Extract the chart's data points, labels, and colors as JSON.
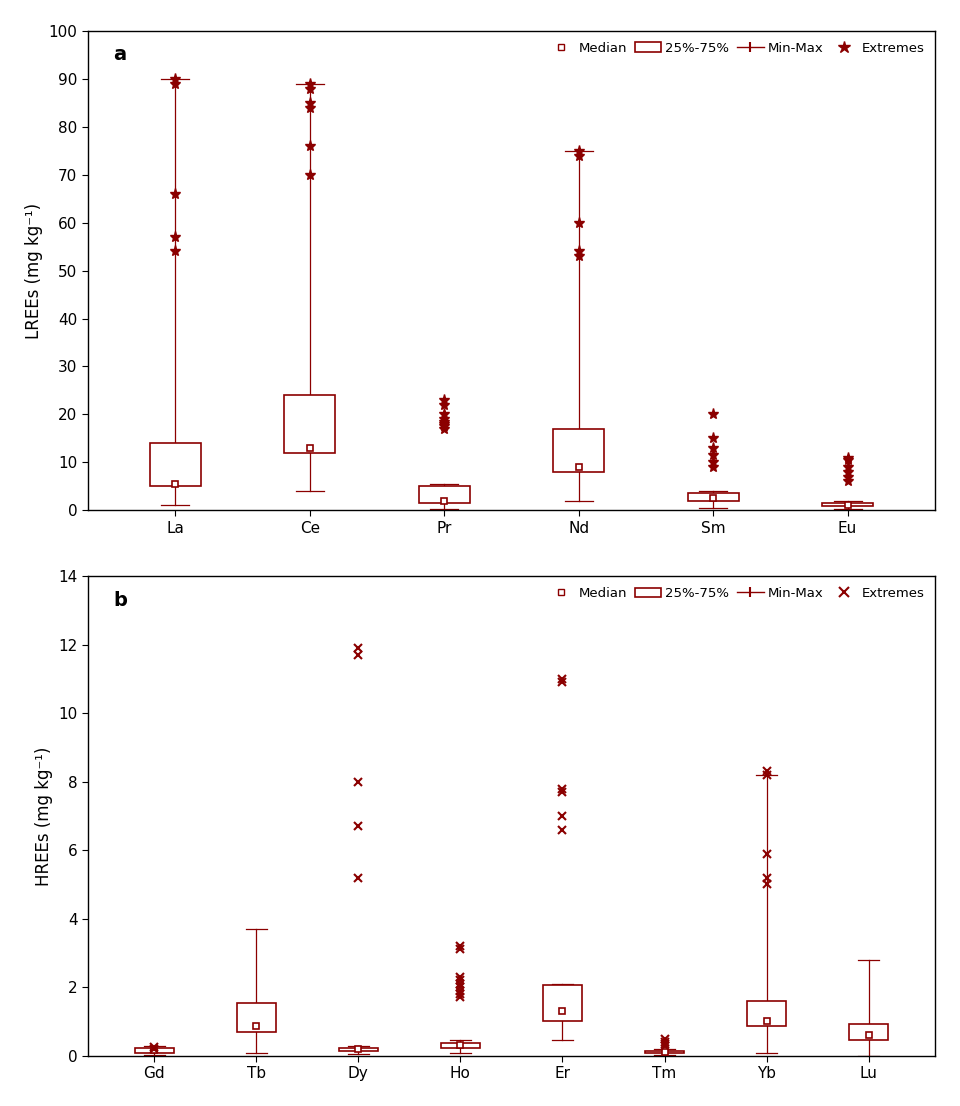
{
  "color": "#8B0000",
  "panel_a": {
    "label": "a",
    "ylabel": "LREEs (mg kg⁻¹)",
    "ylim": [
      0,
      100
    ],
    "yticks": [
      0,
      10,
      20,
      30,
      40,
      50,
      60,
      70,
      80,
      90,
      100
    ],
    "categories": [
      "La",
      "Ce",
      "Pr",
      "Nd",
      "Sm",
      "Eu"
    ],
    "median": [
      5.5,
      13.0,
      2.0,
      9.0,
      2.5,
      1.0
    ],
    "q1": [
      5.0,
      12.0,
      1.5,
      8.0,
      2.0,
      0.8
    ],
    "q3": [
      14.0,
      24.0,
      5.0,
      17.0,
      3.5,
      1.5
    ],
    "whisker_min": [
      1.0,
      4.0,
      0.3,
      2.0,
      0.5,
      0.2
    ],
    "whisker_max": [
      90.0,
      89.0,
      5.5,
      75.0,
      4.0,
      2.0
    ],
    "extremes": [
      [
        54.0,
        57.0,
        66.0,
        89.0,
        90.0
      ],
      [
        70.0,
        76.0,
        84.0,
        85.0,
        88.0,
        89.0
      ],
      [
        17.0,
        17.5,
        18.0,
        18.5,
        19.0,
        20.0,
        22.0,
        23.0
      ],
      [
        53.0,
        54.0,
        60.0,
        74.0,
        75.0
      ],
      [
        9.0,
        10.0,
        11.5,
        13.0,
        15.0,
        20.0
      ],
      [
        6.0,
        7.0,
        8.0,
        9.0,
        10.5,
        11.0
      ]
    ],
    "extreme_marker": "*"
  },
  "panel_b": {
    "label": "b",
    "ylabel": "HREEs (mg kg⁻¹)",
    "ylim": [
      0,
      14
    ],
    "yticks": [
      0,
      2,
      4,
      6,
      8,
      10,
      12,
      14
    ],
    "categories": [
      "Gd",
      "Tb",
      "Dy",
      "Ho",
      "Er",
      "Tm",
      "Yb",
      "Lu"
    ],
    "median": [
      0.15,
      0.85,
      0.18,
      0.3,
      1.3,
      0.1,
      1.0,
      0.6
    ],
    "q1": [
      0.08,
      0.7,
      0.12,
      0.22,
      1.0,
      0.07,
      0.85,
      0.45
    ],
    "q3": [
      0.22,
      1.55,
      0.22,
      0.38,
      2.05,
      0.14,
      1.6,
      0.92
    ],
    "whisker_min": [
      0.02,
      0.08,
      0.04,
      0.08,
      0.45,
      0.02,
      0.08,
      0.0
    ],
    "whisker_max": [
      0.28,
      3.7,
      0.28,
      0.45,
      2.1,
      0.18,
      8.2,
      2.8
    ],
    "extremes": [
      [
        0.18,
        0.25
      ],
      [],
      [
        5.2,
        6.7,
        8.0,
        11.7,
        11.9
      ],
      [
        1.7,
        1.8,
        1.9,
        2.0,
        2.1,
        2.2,
        2.3,
        3.1,
        3.2
      ],
      [
        6.6,
        7.0,
        7.7,
        7.8,
        10.9,
        11.0
      ],
      [
        0.28,
        0.33,
        0.4,
        0.48
      ],
      [
        5.0,
        5.2,
        5.9,
        8.2,
        8.3
      ],
      []
    ],
    "extreme_marker": "x"
  }
}
